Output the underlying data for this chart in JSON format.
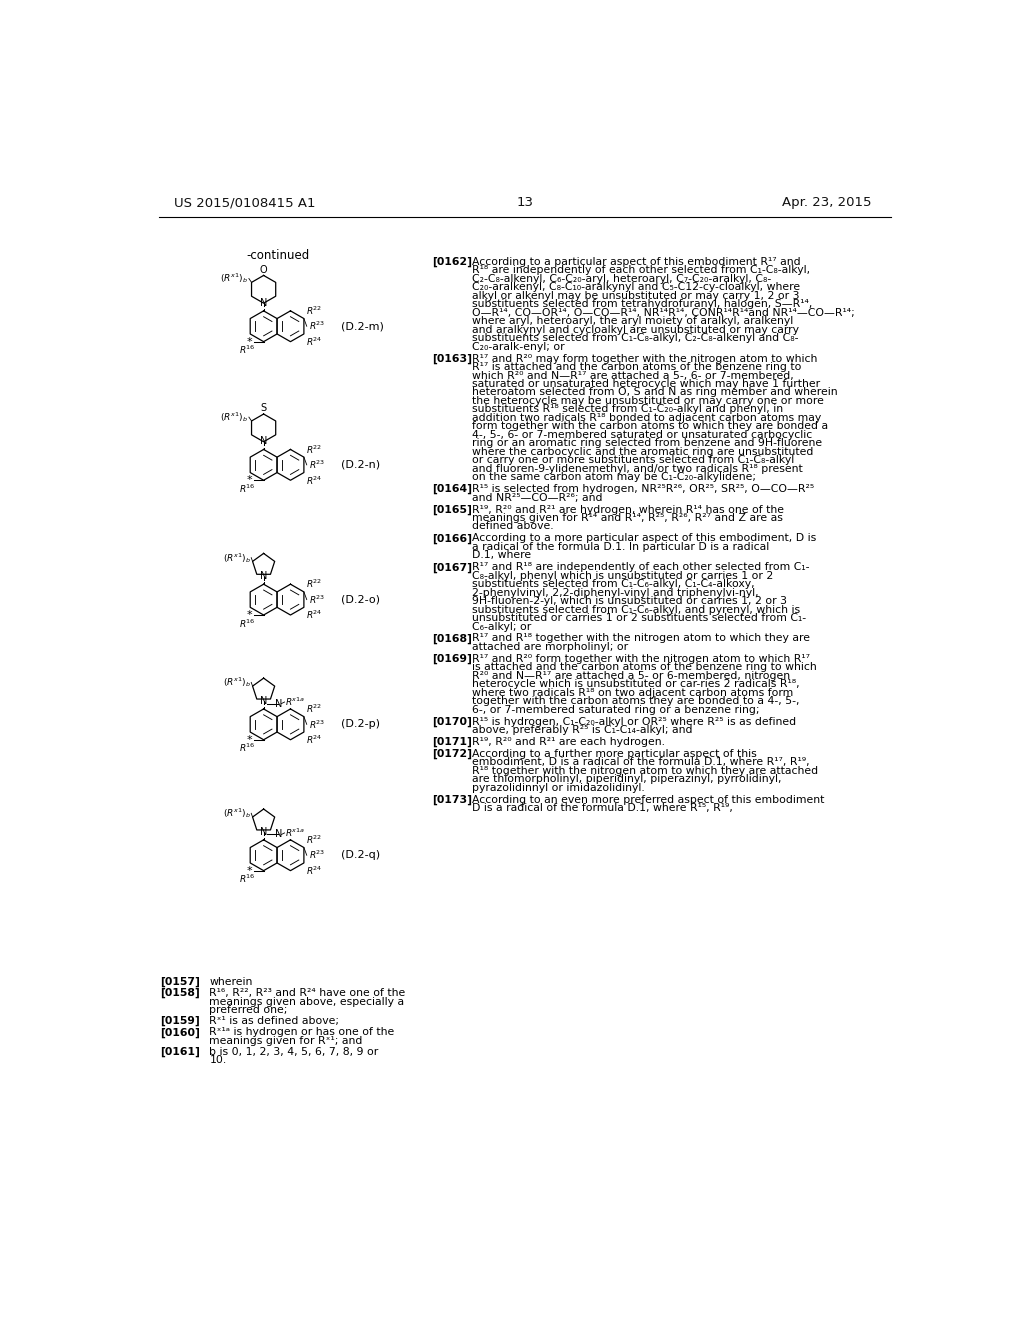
{
  "background_color": "#ffffff",
  "header_left": "US 2015/0108415 A1",
  "header_center": "13",
  "header_right": "Apr. 23, 2015",
  "continued_label": "-continued",
  "right_paragraphs": [
    {
      "tag": "[0162]",
      "body": "According to a particular aspect of this embodiment R¹⁷ and R¹⁸ are independently of each other selected from C₁-C₈-alkyl, C₂-C₈-alkenyl, C₆-C₂₀-aryl, heteroaryl, C₇-C₂₀-aralkyl, C₈-C₂₀-aralkenyl, C₈-C₁₀-aralkynyl and C₅-C12-cy-cloalkyl, where alkyl or alkenyl may be unsubstituted or may carry 1, 2 or 3 substituents selected from tetrahydrofuranyl, halogen, S—R¹⁴, O—R¹⁴, CO—OR¹⁴, O—CO—R¹⁴, NR¹⁴R¹⁴, CONR¹⁴R¹⁴and NR¹⁴—CO—R¹⁴; where aryl, heteroaryl, the aryl moiety of aralkyl, aralkenyl and aralkynyl and cycloalkyl are unsubstituted or may carry substituents selected from C₁-C₈-alkyl, C₂-C₈-alkenyl and C₈-C₂₀-aralk-enyl; or"
    },
    {
      "tag": "[0163]",
      "body": "R¹⁷ and R²⁰ may form together with the nitrogen atom to which R¹⁷ is attached and the carbon atoms of the benzene ring to which R²⁰ and N—R¹⁷ are attached a 5-, 6- or 7-membered, saturated or unsaturated heterocycle which may have 1 further heteroatom selected from O, S and N as ring member and wherein the heterocycle may be unsubstituted or may carry one or more substituents R¹⁸ selected from C₁-C₂₀-alkyl and phenyl, in addition two radicals R¹⁸ bonded to adjacent carbon atoms may form together with the carbon atoms to which they are bonded a 4-, 5-, 6- or 7-membered saturated or unsaturated carbocyclic ring or an aromatic ring selected from benzene and 9H-fluorene where the carbocyclic and the aromatic ring are unsubstituted or carry one or more substituents selected from C₁-C₈-alkyl and fluoren-9-ylidenemethyl, and/or two radicals R¹⁸ present on the same carbon atom may be C₁-C₂₀-alkylidene;"
    },
    {
      "tag": "[0164]",
      "body": "R¹⁵ is selected from hydrogen, NR²⁵R²⁶, OR²⁵, SR²⁵, O—CO—R²⁵ and NR²⁵—CO—R²⁶; and"
    },
    {
      "tag": "[0165]",
      "body": "R¹⁹, R²⁰ and R²¹ are hydrogen, wherein R¹⁴ has one of the meanings given for R¹⁴ and R¹⁴, R²⁵, R²⁶, R²⁷ and Z are as defined above."
    },
    {
      "tag": "[0166]",
      "body": "According to a more particular aspect of this embodiment, D is a radical of the formula D.1. In particular D is a radical D.1, where"
    },
    {
      "tag": "[0167]",
      "body": "R¹⁷ and R¹⁸ are independently of each other selected from C₁-C₈-alkyl, phenyl which is unsubstituted or carries 1 or 2 substituents selected from C₁-C₆-alkyl, C₁-C₄-alkoxy, 2-phenylvinyl, 2,2-diphenyl-vinyl and triphenylvi-nyl, 9H-fluoren-2-yl, which is unsubstituted or carries 1, 2 or 3 substituents selected from C₁-C₆-alkyl, and pyrenyl, which is unsubstituted or carries 1 or 2 substituents selected from C₁-C₆-alkyl; or"
    },
    {
      "tag": "[0168]",
      "body": "R¹⁷ and R¹⁸ together with the nitrogen atom to which they are attached are morpholinyl; or"
    },
    {
      "tag": "[0169]",
      "body": "R¹⁷ and R²⁰ form together with the nitrogen atom to which R¹⁷ is attached and the carbon atoms of the benzene ring to which R²⁰ and N—R¹⁷ are attached a 5- or 6-membered, nitrogen heterocycle which is unsubstituted or car-ries 2 radicals R¹⁸, where two radicals R¹⁸ on two adjacent carbon atoms form together with the carbon atoms they are bonded to a 4-, 5-, 6-, or 7-membered saturated ring or a benzene ring;"
    },
    {
      "tag": "[0170]",
      "body": "R¹⁵ is hydrogen, C₁-C₂₀-alkyl or OR²⁵ where R²⁵ is as defined above, preferably R²⁵ is C₁-C₁₄-alkyl; and"
    },
    {
      "tag": "[0171]",
      "body": "R¹⁹, R²⁰ and R²¹ are each hydrogen."
    },
    {
      "tag": "[0172]",
      "body": "According to a further more particular aspect of this embodiment, D is a radical of the formula D.1, where R¹⁷, R¹⁹, R¹⁸ together with the nitrogen atom to which they are attached are thiomorpholinyl, piperidinyl, piperazinyl, pyrrolidinyl, pyrazolidinnyl or imidazolidinyl."
    },
    {
      "tag": "[0173]",
      "body": "According to an even more preferred aspect of this embodiment D is a radical of the formula D.1, where R¹⁵, R¹⁹,"
    }
  ],
  "bottom_paragraphs": [
    {
      "tag": "[0157]",
      "body": "wherein"
    },
    {
      "tag": "[0158]",
      "body": "R¹⁶, R²², R²³ and R²⁴ have one of the meanings given above, especially a preferred one;"
    },
    {
      "tag": "[0159]",
      "body": "Rˣ¹ is as defined above;"
    },
    {
      "tag": "[0160]",
      "body": "Rˣ¹ᵃ is hydrogen or has one of the meanings given for Rˣ¹; and"
    },
    {
      "tag": "[0161]",
      "body": "b is 0, 1, 2, 3, 4, 5, 6, 7, 8, 9 or 10."
    }
  ],
  "struct_labels": [
    "(D.2-m)",
    "(D.2-n)",
    "(D.2-o)",
    "(D.2-p)",
    "(D.2-q)"
  ],
  "struct_hetero": [
    "O",
    "S",
    "",
    "",
    ""
  ],
  "struct_ring5": [
    false,
    false,
    true,
    true,
    true
  ],
  "struct_extraN": [
    false,
    false,
    false,
    true,
    true
  ]
}
